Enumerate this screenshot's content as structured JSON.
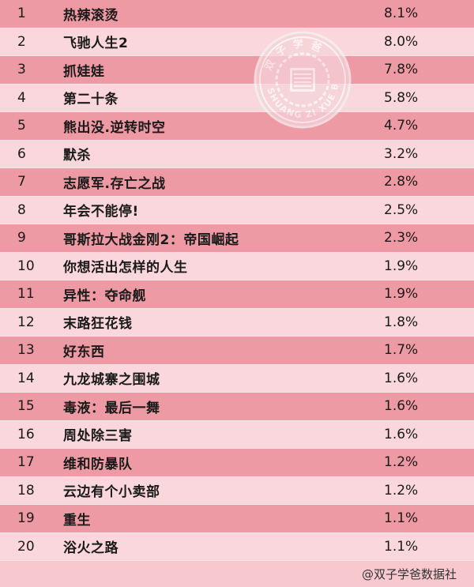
{
  "rows": [
    {
      "rank": "1",
      "title": "热辣滚烫",
      "share": "8.1%"
    },
    {
      "rank": "2",
      "title": "飞驰人生2",
      "share": "8.0%"
    },
    {
      "rank": "3",
      "title": "抓娃娃",
      "share": "7.8%"
    },
    {
      "rank": "4",
      "title": "第二十条",
      "share": "5.8%"
    },
    {
      "rank": "5",
      "title": "熊出没.逆转时空",
      "share": "4.7%"
    },
    {
      "rank": "6",
      "title": "默杀",
      "share": "3.2%"
    },
    {
      "rank": "7",
      "title": "志愿军.存亡之战",
      "share": "2.8%"
    },
    {
      "rank": "8",
      "title": "年会不能停!",
      "share": "2.5%"
    },
    {
      "rank": "9",
      "title": "哥斯拉大战金刚2：帝国崛起",
      "share": "2.3%"
    },
    {
      "rank": "10",
      "title": "你想活出怎样的人生",
      "share": "1.9%"
    },
    {
      "rank": "11",
      "title": "异性：夺命舰",
      "share": "1.9%"
    },
    {
      "rank": "12",
      "title": "末路狂花钱",
      "share": "1.8%"
    },
    {
      "rank": "13",
      "title": "好东西",
      "share": "1.7%"
    },
    {
      "rank": "14",
      "title": "九龙城寨之围城",
      "share": "1.6%"
    },
    {
      "rank": "15",
      "title": "毒液：最后一舞",
      "share": "1.6%"
    },
    {
      "rank": "16",
      "title": "周处除三害",
      "share": "1.6%"
    },
    {
      "rank": "17",
      "title": "维和防暴队",
      "share": "1.2%"
    },
    {
      "rank": "18",
      "title": "云边有个小卖部",
      "share": "1.2%"
    },
    {
      "rank": "19",
      "title": "重生",
      "share": "1.1%"
    },
    {
      "rank": "20",
      "title": "浴火之路",
      "share": "1.1%"
    }
  ],
  "footer": {
    "credit": "@双子学爸数据社"
  },
  "watermark": {
    "top_text": "双子学爸",
    "bottom_text": "SHUANG ZI XUE BA"
  },
  "colors": {
    "row_dark": "#ee9aa4",
    "row_light": "#f9d7dc",
    "background": "#f7c9cf"
  }
}
